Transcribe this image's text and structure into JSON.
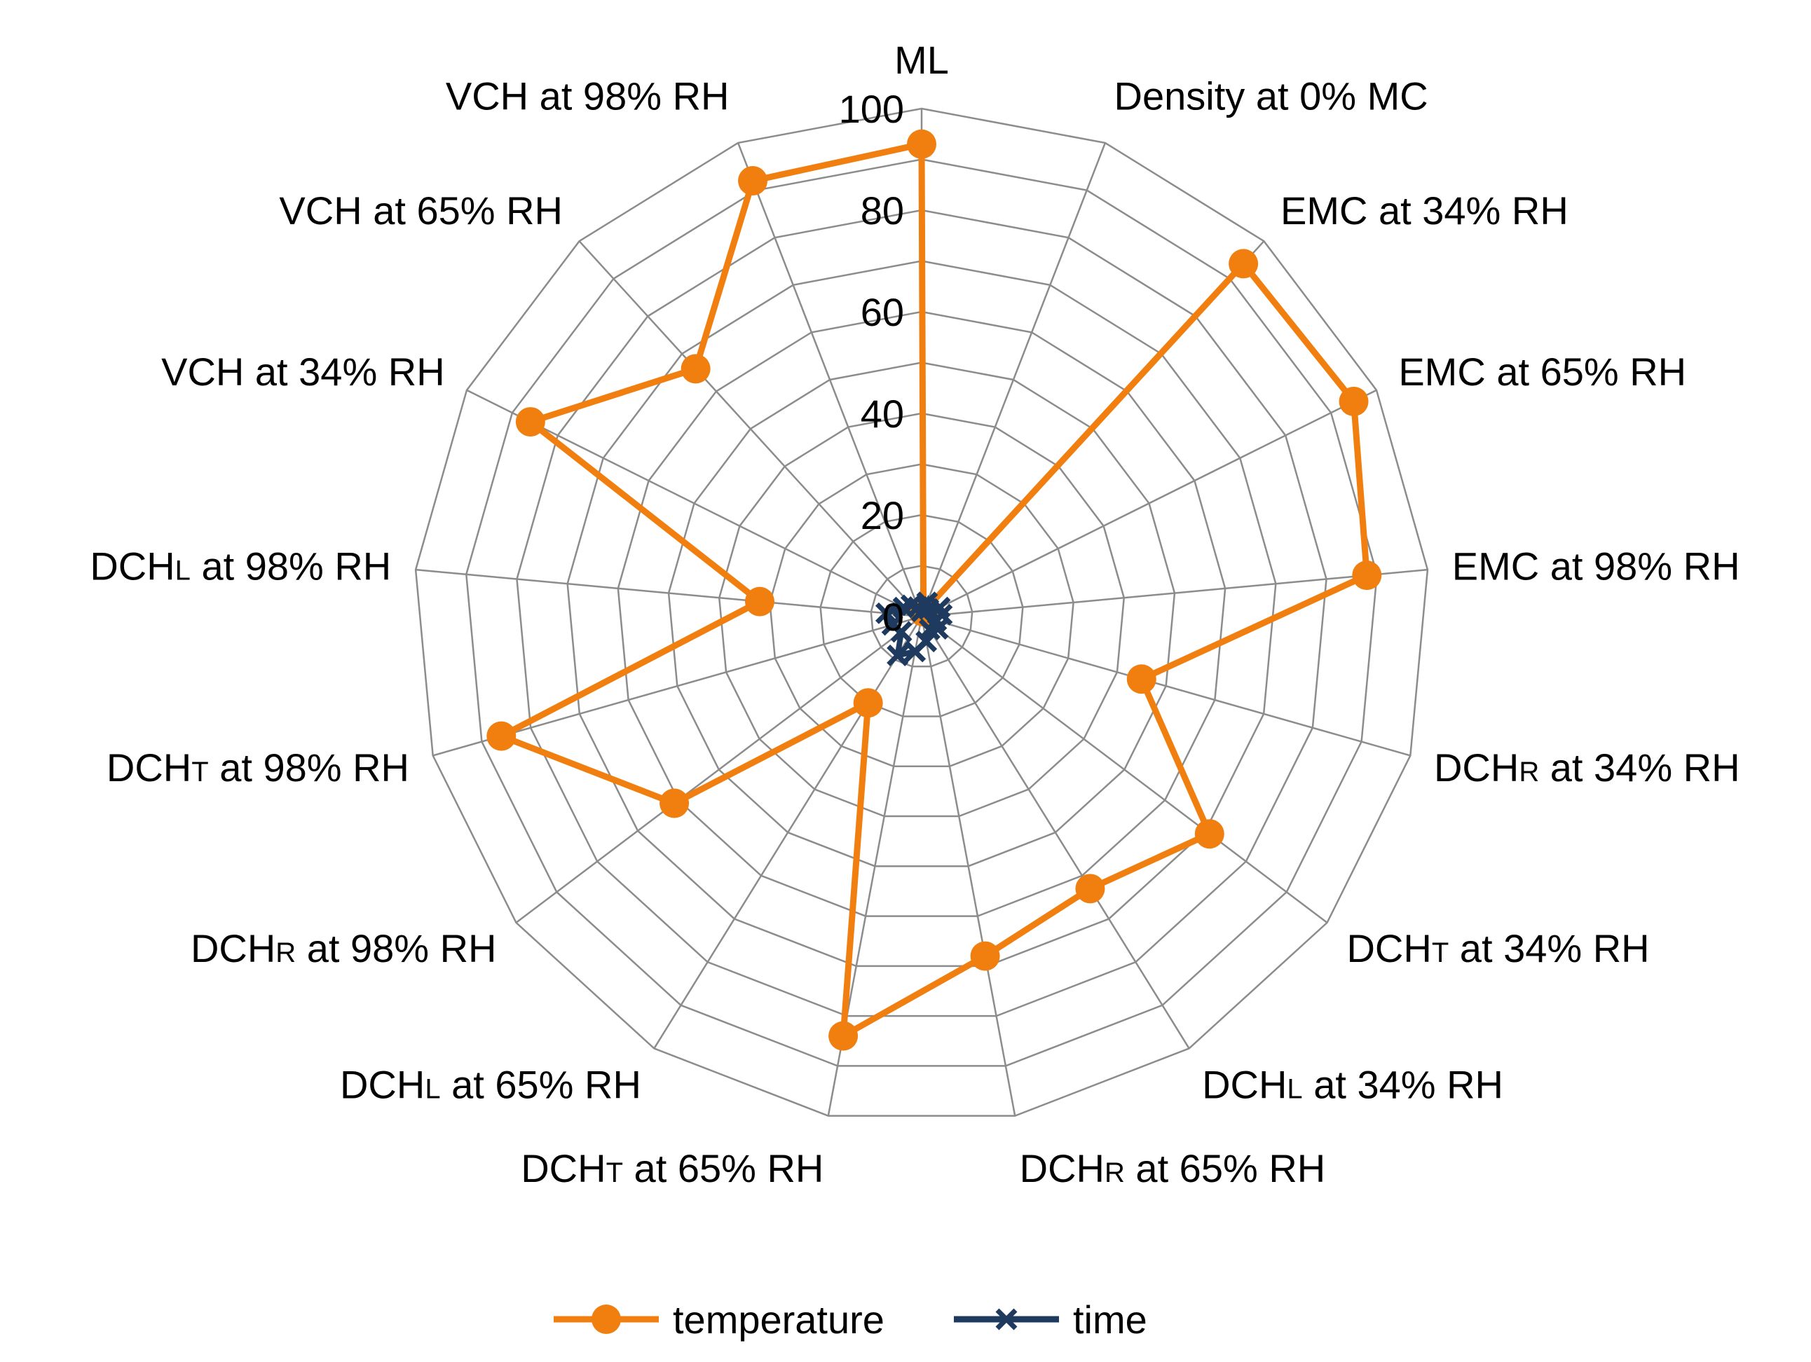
{
  "chart_data": {
    "type": "radar",
    "categories": [
      "ML",
      "Density at 0% MC",
      "EMC at 34% RH",
      "EMC at 65% RH",
      "EMC at 98% RH",
      "DCHR at 34% RH",
      "DCHT at 34% RH",
      "DCHL at 34% RH",
      "DCHR at 65% RH",
      "DCHT at 65% RH",
      "DCHL at 65% RH",
      "DCHR at 98% RH",
      "DCHT at 98% RH",
      "DCHL at 98% RH",
      "VCH at 34% RH",
      "VCH at 65% RH",
      "VCH at 98% RH"
    ],
    "category_labels": [
      {
        "main": "ML",
        "sub": "",
        "rest": ""
      },
      {
        "main": "Density at 0% MC",
        "sub": "",
        "rest": ""
      },
      {
        "main": "EMC at 34% RH",
        "sub": "",
        "rest": ""
      },
      {
        "main": "EMC at 65% RH",
        "sub": "",
        "rest": ""
      },
      {
        "main": "EMC at 98% RH",
        "sub": "",
        "rest": ""
      },
      {
        "main": "DCH",
        "sub": "R",
        "rest": " at 34% RH"
      },
      {
        "main": "DCH",
        "sub": "T",
        "rest": " at 34% RH"
      },
      {
        "main": "DCH",
        "sub": "L",
        "rest": " at 34% RH"
      },
      {
        "main": "DCH",
        "sub": "R",
        "rest": " at 65% RH"
      },
      {
        "main": "DCH",
        "sub": "T",
        "rest": " at 65% RH"
      },
      {
        "main": "DCH",
        "sub": "L",
        "rest": " at 65% RH"
      },
      {
        "main": "DCH",
        "sub": "R",
        "rest": " at 98% RH"
      },
      {
        "main": "DCH",
        "sub": "T",
        "rest": " at 98% RH"
      },
      {
        "main": "DCH",
        "sub": "L",
        "rest": " at 98% RH"
      },
      {
        "main": "VCH at 34% RH",
        "sub": "",
        "rest": ""
      },
      {
        "main": "VCH at 65% RH",
        "sub": "",
        "rest": ""
      },
      {
        "main": "VCH at 98% RH",
        "sub": "",
        "rest": ""
      }
    ],
    "series": [
      {
        "name": "temperature",
        "color": "#F07F10",
        "marker": "circle",
        "values": [
          93,
          1,
          94,
          95,
          88,
          45,
          71,
          63,
          68,
          84,
          20,
          61,
          86,
          32,
          86,
          66,
          92
        ]
      },
      {
        "name": "time",
        "color": "#1F3A5F",
        "marker": "x",
        "values": [
          1,
          3,
          2,
          4,
          4,
          3,
          4,
          3,
          5,
          7,
          9,
          5,
          6,
          7,
          4,
          3,
          2
        ]
      }
    ],
    "rlim": [
      0,
      100
    ],
    "ticks": [
      0,
      20,
      40,
      60,
      80,
      100
    ],
    "grid": true,
    "legend": "bottom"
  }
}
